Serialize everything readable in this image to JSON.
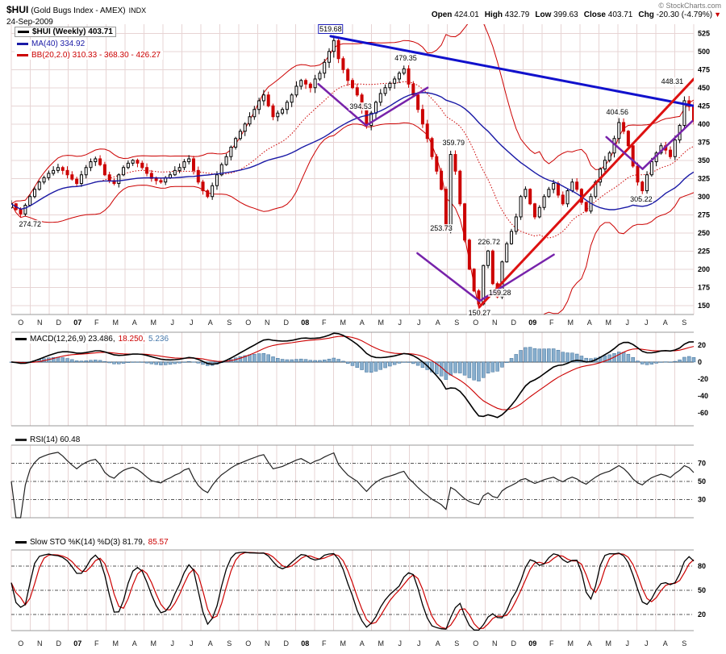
{
  "header": {
    "symbol": "$HUI",
    "name": "(Gold Bugs Index - AMEX)",
    "exchange": "INDX",
    "date": "24-Sep-2009",
    "copyright": "© StockCharts.com",
    "quote": [
      {
        "label": "Open",
        "value": "424.01"
      },
      {
        "label": "High",
        "value": "432.79"
      },
      {
        "label": "Low",
        "value": "399.63"
      },
      {
        "label": "Close",
        "value": "403.71"
      },
      {
        "label": "Chg",
        "value": "-20.30 (-4.79%)"
      }
    ],
    "chg_arrow": "▼"
  },
  "chart_data": {
    "type": "candlestick",
    "title": "$HUI (Gold Bugs Index - AMEX) INDX Weekly",
    "timeframe": "Weekly, Oct 2006 - Sep 2009",
    "months": [
      "O",
      "N",
      "D",
      "07",
      "F",
      "M",
      "A",
      "M",
      "J",
      "J",
      "A",
      "S",
      "O",
      "N",
      "D",
      "08",
      "F",
      "M",
      "A",
      "M",
      "J",
      "J",
      "A",
      "S",
      "O",
      "N",
      "D",
      "09",
      "F",
      "M",
      "A",
      "M",
      "J",
      "J",
      "A",
      "S"
    ],
    "year_label_indices": [
      3,
      15,
      27
    ],
    "price": {
      "ylim": [
        137.5,
        537.5
      ],
      "axis_ticks": [
        525,
        500,
        475,
        450,
        425,
        400,
        375,
        350,
        325,
        300,
        275,
        250,
        225,
        200,
        175,
        150
      ],
      "closes": [
        290,
        282,
        276,
        288,
        300,
        310,
        320,
        326,
        332,
        336,
        340,
        336,
        330,
        324,
        318,
        330,
        340,
        348,
        352,
        344,
        330,
        322,
        318,
        330,
        340,
        346,
        350,
        346,
        340,
        332,
        325,
        322,
        320,
        326,
        330,
        336,
        340,
        348,
        352,
        336,
        320,
        308,
        300,
        315,
        330,
        344,
        355,
        368,
        380,
        390,
        400,
        410,
        420,
        432,
        440,
        425,
        410,
        415,
        420,
        430,
        440,
        452,
        460,
        455,
        450,
        462,
        470,
        485,
        500,
        515,
        490,
        475,
        460,
        450,
        440,
        420,
        398,
        415,
        430,
        442,
        450,
        456,
        462,
        470,
        476,
        455,
        440,
        420,
        400,
        380,
        355,
        335,
        310,
        255,
        358,
        335,
        290,
        240,
        200,
        170,
        152,
        205,
        225,
        180,
        162,
        210,
        235,
        252,
        272,
        300,
        310,
        290,
        272,
        285,
        300,
        310,
        318,
        302,
        290,
        308,
        320,
        310,
        292,
        280,
        300,
        320,
        338,
        350,
        360,
        380,
        402,
        390,
        370,
        342,
        320,
        308,
        330,
        348,
        360,
        370,
        364,
        355,
        378,
        398,
        432,
        424,
        403.71
      ]
    },
    "panels": {
      "macd": {
        "name": "MACD(12,26,9)",
        "values": [
          23.486,
          18.25,
          5.236
        ],
        "ticks": [
          20,
          0,
          -20,
          -40,
          -60
        ],
        "ylim": [
          -75,
          35
        ]
      },
      "rsi": {
        "name": "RSI(14)",
        "value": 60.48,
        "levels": [
          70,
          50,
          30
        ],
        "ylim": [
          10,
          90
        ]
      },
      "sto": {
        "name": "Slow STO %K(14) %D(3)",
        "values": [
          81.79,
          85.57
        ],
        "levels": [
          80,
          50,
          20
        ],
        "ylim": [
          0,
          100
        ]
      }
    },
    "legends": {
      "hui": {
        "box": true,
        "swatch": "#000000",
        "parts": [
          {
            "t": "$HUI (Weekly) 403.71",
            "c": "#000000"
          }
        ]
      },
      "ma": {
        "box": false,
        "swatch": "#1a1aa6",
        "parts": [
          {
            "t": "MA(40) 334.92",
            "c": "#1a1aa6"
          }
        ]
      },
      "bb": {
        "box": false,
        "swatch": "#cc0000",
        "parts": [
          {
            "t": "BB(20,2.0) 310.33 - 368.30 - 426.27",
            "c": "#cc0000"
          }
        ]
      },
      "macd": {
        "box": false,
        "swatch": "#000000",
        "parts": [
          {
            "t": "MACD(12,26,9) 23.486,",
            "c": "#000000"
          },
          {
            "t": " 18.250,",
            "c": "#cc0000"
          },
          {
            "t": " 5.236",
            "c": "#4477aa"
          }
        ]
      },
      "rsi": {
        "box": false,
        "swatch": "#222222",
        "parts": [
          {
            "t": "RSI(14) 60.48",
            "c": "#000000"
          }
        ]
      },
      "sto": {
        "box": false,
        "swatch": "#000000",
        "parts": [
          {
            "t": "Slow STO %K(14) %D(3) 81.79,",
            "c": "#000000"
          },
          {
            "t": " 85.57",
            "c": "#cc0000"
          }
        ]
      }
    },
    "overlays": {
      "labels": [
        {
          "text": "274.72",
          "f": 0.01,
          "p": 262,
          "anchor": "start"
        },
        {
          "text": "519.68",
          "f": 0.468,
          "p": 531,
          "box": "#2222bb"
        },
        {
          "text": "479.35",
          "f": 0.578,
          "p": 491
        },
        {
          "text": "448.31",
          "f": 0.986,
          "p": 459,
          "anchor": "end"
        },
        {
          "text": "404.56",
          "f": 0.888,
          "p": 416
        },
        {
          "text": "394.53",
          "f": 0.512,
          "p": 424
        },
        {
          "text": "359.79",
          "f": 0.648,
          "p": 374
        },
        {
          "text": "305.22",
          "f": 0.923,
          "p": 296
        },
        {
          "text": "253.73",
          "f": 0.63,
          "p": 256
        },
        {
          "text": "226.72",
          "f": 0.7,
          "p": 238
        },
        {
          "text": "159.28",
          "f": 0.716,
          "p": 168
        },
        {
          "text": "150.27",
          "f": 0.686,
          "p": 140
        }
      ],
      "lines": [
        {
          "x1": 0.468,
          "p1": 521,
          "x2": 1.0,
          "p2": 425,
          "color": "blue",
          "w": 3
        },
        {
          "x1": 0.686,
          "p1": 148,
          "x2": 1.0,
          "p2": 462,
          "color": "red",
          "w": 3
        },
        {
          "x1": 0.45,
          "p1": 455,
          "x2": 0.52,
          "p2": 398,
          "color": "purple",
          "w": 2.5
        },
        {
          "x1": 0.52,
          "p1": 398,
          "x2": 0.61,
          "p2": 450,
          "color": "purple",
          "w": 2.5
        },
        {
          "x1": 0.595,
          "p1": 222,
          "x2": 0.686,
          "p2": 156,
          "color": "purple",
          "w": 2.5
        },
        {
          "x1": 0.686,
          "p1": 156,
          "x2": 0.795,
          "p2": 220,
          "color": "purple",
          "w": 2.5
        },
        {
          "x1": 0.872,
          "p1": 382,
          "x2": 0.925,
          "p2": 338,
          "color": "purple",
          "w": 2.5
        },
        {
          "x1": 0.925,
          "p1": 338,
          "x2": 0.998,
          "p2": 404,
          "color": "purple",
          "w": 2.5
        }
      ]
    },
    "colors": {
      "grid": "#e7d4d4",
      "panel_border": "#999999",
      "candle_up_stroke": "#000000",
      "candle_up_fill": "#ffffff",
      "candle_down": "#cc0000",
      "ma40": "#1a1aa6",
      "bb": "#cc0000",
      "macd_line": "#000000",
      "macd_signal": "#cc0000",
      "macd_hist_fill": "#88aecd",
      "macd_hist_stroke": "#3c6e99",
      "rsi_line": "#222222",
      "sto_k": "#000000",
      "sto_d": "#cc0000",
      "trend_blue": "#1111cc",
      "trend_red": "#dd1111",
      "trend_purple": "#7722aa",
      "axis_text": "#000000",
      "level_dash": "#555555"
    }
  }
}
